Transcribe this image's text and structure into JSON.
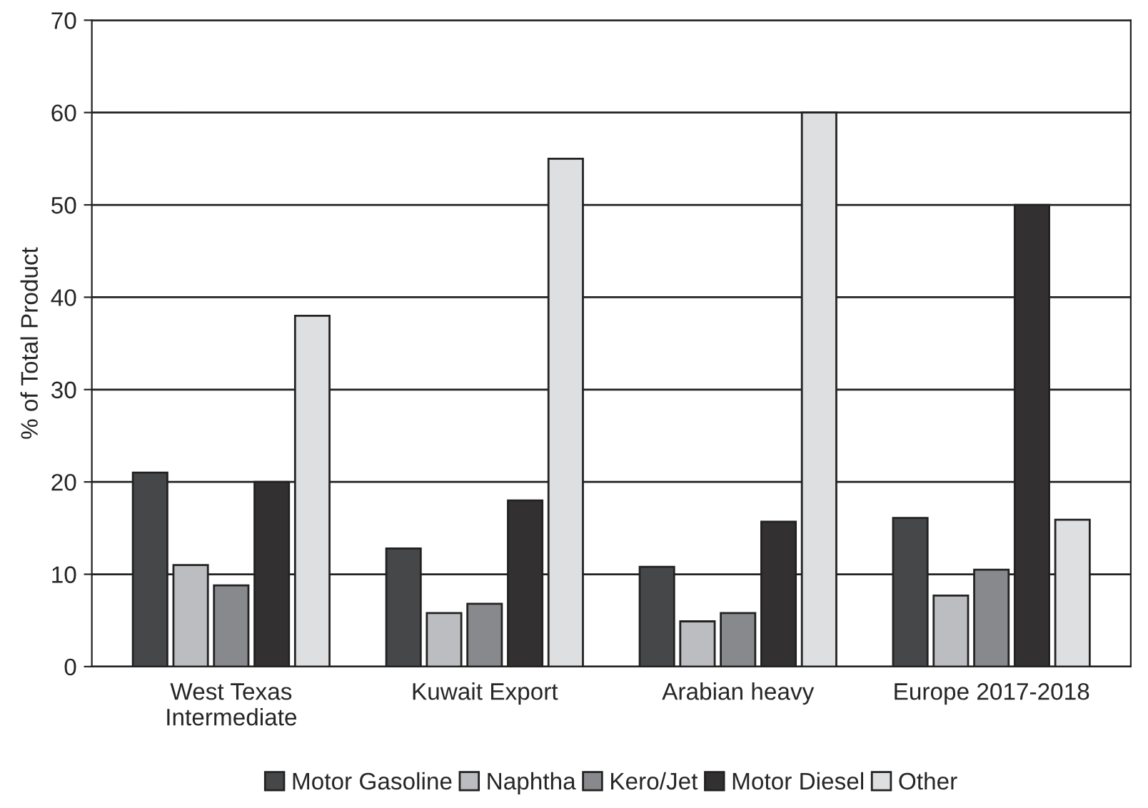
{
  "chart_data": {
    "type": "bar",
    "ylabel": "% of Total Product",
    "categories": [
      "West Texas\nIntermediate",
      "Kuwait Export",
      "Arabian heavy",
      "Europe 2017-2018"
    ],
    "series": [
      {
        "name": "Motor Gasoline",
        "color": "#454749",
        "values": [
          21,
          12.8,
          10.8,
          16.1
        ]
      },
      {
        "name": "Naphtha",
        "color": "#bcbdc0",
        "values": [
          11,
          5.8,
          4.9,
          7.7
        ]
      },
      {
        "name": "Kero/Jet",
        "color": "#88898c",
        "values": [
          8.8,
          6.8,
          5.8,
          10.5
        ]
      },
      {
        "name": "Motor Diesel",
        "color": "#323031",
        "values": [
          20,
          18,
          15.7,
          50
        ]
      },
      {
        "name": "Other",
        "color": "#dedfe1",
        "values": [
          38,
          55,
          60,
          15.9
        ]
      }
    ],
    "ylim": [
      0,
      70
    ],
    "yticks": [
      0,
      10,
      20,
      30,
      40,
      50,
      60,
      70
    ],
    "grid": "y",
    "legend": "bottom"
  }
}
